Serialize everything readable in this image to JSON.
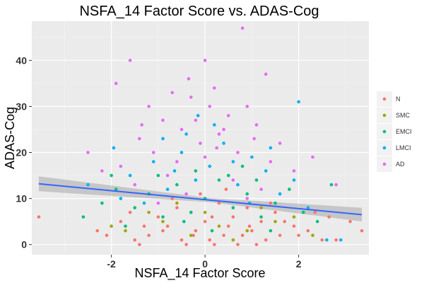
{
  "chart_data": {
    "type": "scatter",
    "title": "NSFA_14 Factor Score vs. ADAS-Cog",
    "xlabel": "NSFA_14 Factor Score",
    "ylabel": "ADAS-Cog",
    "xlim": [
      -3.7,
      3.5
    ],
    "ylim": [
      -2.2,
      48.5
    ],
    "x_ticks": [
      -2,
      0,
      2
    ],
    "y_ticks": [
      0,
      10,
      20,
      30,
      40
    ],
    "grid": true,
    "legend_position": "right",
    "series": [
      {
        "name": "N",
        "color": "#F8766D",
        "points": [
          [
            -3.55,
            6
          ],
          [
            3.35,
            3
          ],
          [
            -2.3,
            3
          ],
          [
            -1.5,
            1
          ],
          [
            -1.2,
            2
          ],
          [
            -0.8,
            4
          ],
          [
            -0.5,
            1
          ],
          [
            -0.2,
            3
          ],
          [
            0.1,
            1
          ],
          [
            0.4,
            2
          ],
          [
            0.7,
            0
          ],
          [
            1.0,
            3
          ],
          [
            1.3,
            1
          ],
          [
            1.6,
            2
          ],
          [
            1.9,
            4
          ],
          [
            2.2,
            3
          ],
          [
            2.5,
            1
          ],
          [
            2.8,
            1
          ],
          [
            -1.0,
            6
          ],
          [
            -0.6,
            8
          ],
          [
            -0.3,
            7
          ],
          [
            0.0,
            5
          ],
          [
            0.3,
            9
          ],
          [
            0.6,
            6
          ],
          [
            0.9,
            8
          ],
          [
            1.2,
            5
          ],
          [
            1.5,
            7
          ],
          [
            -1.8,
            5
          ],
          [
            -2.1,
            2
          ],
          [
            -0.4,
            0
          ],
          [
            0.2,
            0
          ],
          [
            0.8,
            2
          ],
          [
            1.1,
            0
          ],
          [
            -0.9,
            3
          ],
          [
            -1.3,
            4
          ],
          [
            0.5,
            4
          ],
          [
            1.7,
            5
          ],
          [
            2.0,
            2
          ],
          [
            -0.1,
            11
          ],
          [
            0.45,
            12
          ],
          [
            -0.7,
            10
          ],
          [
            1.4,
            9
          ],
          [
            3.1,
            5
          ],
          [
            2.65,
            6
          ],
          [
            -1.6,
            7
          ],
          [
            0.15,
            6
          ],
          [
            0.95,
            4
          ],
          [
            -0.25,
            2
          ],
          [
            -1.4,
            0
          ],
          [
            2.35,
            7
          ]
        ]
      },
      {
        "name": "SMC",
        "color": "#A3A500",
        "points": [
          [
            -1.7,
            3
          ],
          [
            -0.9,
            5
          ],
          [
            -0.3,
            2
          ],
          [
            0.3,
            4
          ],
          [
            0.9,
            3
          ],
          [
            1.5,
            5
          ],
          [
            -1.2,
            7
          ],
          [
            0.6,
            1
          ],
          [
            1.9,
            6
          ],
          [
            -0.6,
            9
          ],
          [
            0.0,
            7
          ],
          [
            1.2,
            8
          ],
          [
            -2.0,
            4
          ],
          [
            2.3,
            2
          ]
        ]
      },
      {
        "name": "EMCI",
        "color": "#00BF7D",
        "points": [
          [
            -2.6,
            6
          ],
          [
            -2.2,
            9
          ],
          [
            -1.9,
            12
          ],
          [
            -1.5,
            8
          ],
          [
            -1.2,
            11
          ],
          [
            -0.9,
            6
          ],
          [
            -0.6,
            13
          ],
          [
            -0.3,
            7
          ],
          [
            0.0,
            10
          ],
          [
            0.3,
            14
          ],
          [
            0.6,
            8
          ],
          [
            0.9,
            11
          ],
          [
            1.2,
            6
          ],
          [
            1.5,
            9
          ],
          [
            1.8,
            12
          ],
          [
            2.1,
            7
          ],
          [
            -1.0,
            15
          ],
          [
            -0.2,
            16
          ],
          [
            0.5,
            15
          ],
          [
            1.1,
            14
          ],
          [
            2.7,
            13
          ],
          [
            -1.7,
            4
          ],
          [
            0.15,
            3
          ],
          [
            1.4,
            3
          ],
          [
            -0.45,
            5
          ],
          [
            2.4,
            5
          ],
          [
            -2.0,
            15
          ],
          [
            0.8,
            17
          ]
        ]
      },
      {
        "name": "LMCI",
        "color": "#00B0F6",
        "points": [
          [
            -1.95,
            21
          ],
          [
            2.0,
            31
          ],
          [
            -2.5,
            13
          ],
          [
            -1.6,
            15
          ],
          [
            -1.1,
            18
          ],
          [
            -0.8,
            12
          ],
          [
            -0.5,
            20
          ],
          [
            -0.2,
            14
          ],
          [
            0.1,
            17
          ],
          [
            0.4,
            22
          ],
          [
            0.7,
            13
          ],
          [
            1.0,
            19
          ],
          [
            1.3,
            16
          ],
          [
            1.6,
            11
          ],
          [
            1.9,
            14
          ],
          [
            2.2,
            8
          ],
          [
            -1.3,
            9
          ],
          [
            -0.4,
            24
          ],
          [
            0.2,
            26
          ],
          [
            0.6,
            18
          ],
          [
            1.4,
            21
          ],
          [
            -0.9,
            23
          ],
          [
            -0.15,
            28
          ],
          [
            2.6,
            1
          ],
          [
            2.9,
            1
          ],
          [
            -1.8,
            10
          ],
          [
            0.95,
            9
          ],
          [
            -0.65,
            16
          ]
        ]
      },
      {
        "name": "AD",
        "color": "#E76BF3",
        "points": [
          [
            0.8,
            47
          ],
          [
            -1.6,
            40
          ],
          [
            0.0,
            40
          ],
          [
            -1.9,
            35
          ],
          [
            1.3,
            37
          ],
          [
            -0.7,
            33
          ],
          [
            0.2,
            34
          ],
          [
            0.9,
            30
          ],
          [
            -1.2,
            30
          ],
          [
            -0.3,
            32
          ],
          [
            0.5,
            28
          ],
          [
            -0.9,
            27
          ],
          [
            1.1,
            26
          ],
          [
            -0.5,
            25
          ],
          [
            0.3,
            24
          ],
          [
            -1.4,
            23
          ],
          [
            1.6,
            22
          ],
          [
            -2.5,
            20
          ],
          [
            2.3,
            19
          ],
          [
            -0.1,
            22
          ],
          [
            0.7,
            20
          ],
          [
            -1.1,
            20
          ],
          [
            1.4,
            18
          ],
          [
            -0.6,
            18
          ],
          [
            0.1,
            30
          ],
          [
            -0.2,
            27
          ],
          [
            0.4,
            25
          ],
          [
            -1.8,
            17
          ],
          [
            1.9,
            16
          ],
          [
            -0.8,
            15
          ],
          [
            0.6,
            14
          ],
          [
            -2.2,
            16
          ],
          [
            2.8,
            13
          ],
          [
            -1.5,
            13
          ],
          [
            1.2,
            12
          ],
          [
            -0.4,
            11
          ],
          [
            0.9,
            10
          ],
          [
            -1.0,
            9
          ],
          [
            0.0,
            19
          ],
          [
            -0.35,
            36
          ],
          [
            0.25,
            21
          ],
          [
            -1.35,
            26
          ],
          [
            1.05,
            23
          ]
        ]
      }
    ],
    "trend_line": {
      "x": [
        -3.55,
        3.35
      ],
      "y": [
        13.2,
        6.5
      ],
      "color": "#3366FF",
      "ci_band": true
    }
  }
}
